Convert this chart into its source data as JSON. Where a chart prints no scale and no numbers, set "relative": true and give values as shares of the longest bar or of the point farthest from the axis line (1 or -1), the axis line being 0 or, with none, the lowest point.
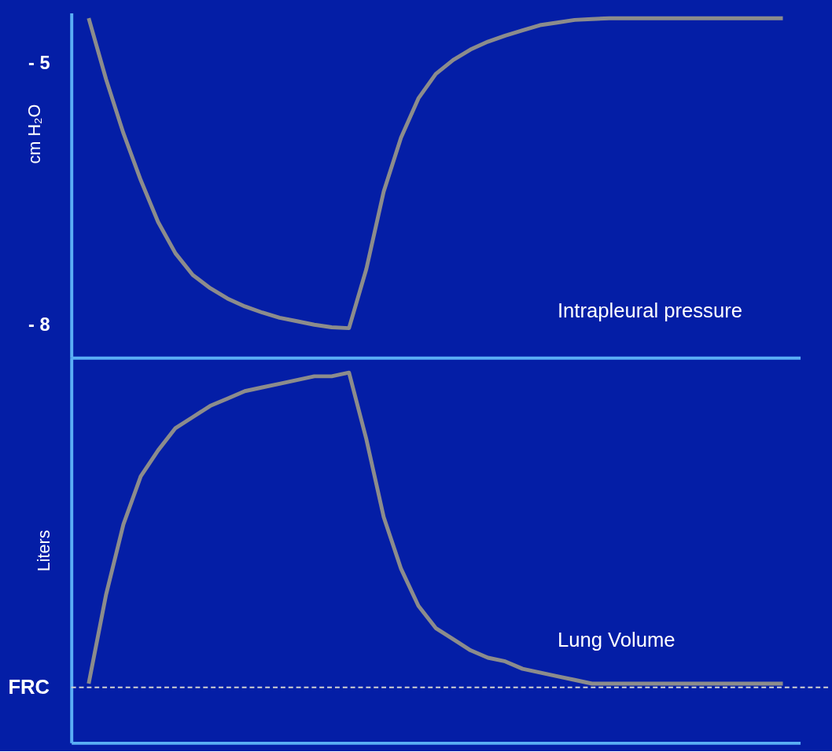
{
  "chart_data": [
    {
      "type": "line",
      "ylabel": "cm H₂O",
      "categories": [
        null,
        null,
        null,
        null,
        null,
        null,
        null,
        null,
        null,
        null,
        null,
        null,
        null,
        null,
        null,
        null,
        null,
        null,
        null,
        null,
        null,
        null,
        null,
        null,
        null,
        null,
        null,
        null,
        null,
        null,
        null,
        null,
        null,
        null,
        null,
        null,
        null,
        null,
        null,
        null,
        null
      ],
      "series": [
        {
          "name": "Intrapleural pressure",
          "color": "#8c8c8c",
          "values": [
            -4.48,
            -5.18,
            -5.8,
            -6.34,
            -6.82,
            -7.18,
            -7.43,
            -7.58,
            -7.7,
            -7.79,
            -7.86,
            -7.92,
            -7.96,
            -8.0,
            -8.03,
            -8.04,
            -7.36,
            -6.47,
            -5.85,
            -5.4,
            -5.12,
            -4.96,
            -4.84,
            -4.75,
            -4.68,
            -4.62,
            -4.56,
            -4.53,
            -4.5,
            -4.49,
            -4.48,
            -4.48,
            -4.48,
            -4.48,
            -4.48,
            -4.48,
            -4.48,
            -4.48,
            -4.48,
            -4.48,
            -4.48
          ]
        }
      ],
      "ylim": [
        -8.38,
        -4.42
      ],
      "yticks": [
        {
          "value": -5,
          "label": "- 5"
        },
        {
          "value": -8,
          "label": "- 8"
        }
      ],
      "tick_labels": "y",
      "grid": false,
      "line_style": "solid"
    },
    {
      "type": "line",
      "ylabel": "Liters",
      "relative": true,
      "categories": [
        null,
        null,
        null,
        null,
        null,
        null,
        null,
        null,
        null,
        null,
        null,
        null,
        null,
        null,
        null,
        null,
        null,
        null,
        null,
        null,
        null,
        null,
        null,
        null,
        null,
        null,
        null,
        null,
        null,
        null,
        null,
        null,
        null,
        null,
        null,
        null,
        null,
        null,
        null,
        null,
        null
      ],
      "series": [
        {
          "name": "Lung Volume",
          "color": "#8c8c8c",
          "values": [
            0.16,
            0.4,
            0.59,
            0.72,
            0.79,
            0.85,
            0.88,
            0.91,
            0.93,
            0.95,
            0.96,
            0.97,
            0.98,
            0.99,
            0.99,
            1,
            0.82,
            0.61,
            0.47,
            0.37,
            0.31,
            0.28,
            0.25,
            0.23,
            0.22,
            0.2,
            0.19,
            0.18,
            0.17,
            0.16,
            0.16,
            0.16,
            0.16,
            0.16,
            0.16,
            0.16,
            0.16,
            0.16,
            0.16,
            0.16,
            0.16
          ]
        }
      ],
      "ref_lines": [
        {
          "axis": "y",
          "value": 0.15,
          "label": "FRC",
          "color": "#d0d0d0",
          "line_style": "dashed"
        }
      ],
      "tick_labels": false,
      "grid": false,
      "line_style": "solid"
    }
  ]
}
